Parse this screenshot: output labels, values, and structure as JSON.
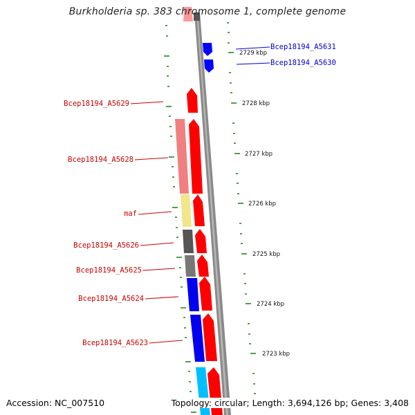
{
  "title": "Burkholderia sp. 383 chromosome 1, complete genome",
  "footer": {
    "accession": "Accession: NC_007510",
    "summary": "Topology: circular; Length: 3,694,126 bp; Genes: 3,408"
  },
  "colors": {
    "forward_strand": "#ff0000",
    "reverse_strand": "#0000ff",
    "forward_label": "#cc0000",
    "reverse_label": "#0000cc",
    "tick": "#228822",
    "backbone": "#888888"
  },
  "gene_labels": [
    {
      "text": "Bcep18194_A5631",
      "strand": "reverse"
    },
    {
      "text": "Bcep18194_A5630",
      "strand": "reverse"
    },
    {
      "text": "Bcep18194_A5629",
      "strand": "forward"
    },
    {
      "text": "Bcep18194_A5628",
      "strand": "forward"
    },
    {
      "text": "maf",
      "strand": "forward"
    },
    {
      "text": "Bcep18194_A5626",
      "strand": "forward"
    },
    {
      "text": "Bcep18194_A5625",
      "strand": "forward"
    },
    {
      "text": "Bcep18194_A5624",
      "strand": "forward"
    },
    {
      "text": "Bcep18194_A5623",
      "strand": "forward"
    }
  ],
  "kbp_labels": [
    "2729 kbp",
    "2728 kbp",
    "2727 kbp",
    "2726 kbp",
    "2725 kbp",
    "2724 kbp",
    "2723 kbp"
  ]
}
